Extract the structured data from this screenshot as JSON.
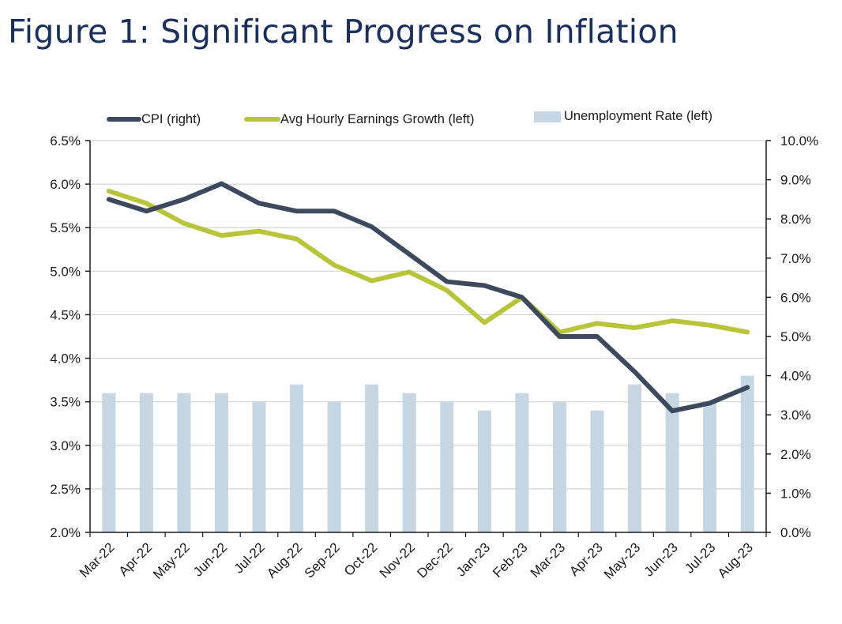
{
  "figure": {
    "title": "Figure 1: Significant Progress on Inflation"
  },
  "colors": {
    "cpi": "#3d4a5e",
    "earnings": "#b8c43a",
    "unemployment": "#c6d6e3",
    "axis": "#1a1a1a",
    "grid": "#d4d4d4",
    "title": "#1b2f5c"
  },
  "chart_data": {
    "type": "bar",
    "grid": true,
    "legend_position": "top",
    "categories": [
      "Mar-22",
      "Apr-22",
      "May-22",
      "Jun-22",
      "Jul-22",
      "Aug-22",
      "Sep-22",
      "Oct-22",
      "Nov-22",
      "Dec-22",
      "Jan-23",
      "Feb-23",
      "Mar-23",
      "Apr-23",
      "May-23",
      "Jun-23",
      "Jul-23",
      "Aug-23"
    ],
    "left_axis": {
      "ylim": [
        2.0,
        6.5
      ],
      "ticks": [
        "2.0%",
        "2.5%",
        "3.0%",
        "3.5%",
        "4.0%",
        "4.5%",
        "5.0%",
        "5.5%",
        "6.0%",
        "6.5%"
      ]
    },
    "right_axis": {
      "ylim": [
        0.0,
        10.0
      ],
      "ticks": [
        "0.0%",
        "1.0%",
        "2.0%",
        "3.0%",
        "4.0%",
        "5.0%",
        "6.0%",
        "7.0%",
        "8.0%",
        "9.0%",
        "10.0%"
      ]
    },
    "series": [
      {
        "name": "CPI (right)",
        "type": "line",
        "axis": "right",
        "values": [
          8.5,
          8.2,
          8.5,
          8.9,
          8.4,
          8.2,
          8.2,
          7.8,
          7.1,
          6.4,
          6.3,
          6.0,
          5.0,
          5.0,
          4.1,
          3.1,
          3.3,
          3.7
        ]
      },
      {
        "name": "Avg Hourly Earnings Growth (left)",
        "type": "line",
        "axis": "left",
        "values": [
          5.92,
          5.78,
          5.55,
          5.41,
          5.46,
          5.37,
          5.07,
          4.89,
          4.99,
          4.78,
          4.41,
          4.7,
          4.3,
          4.4,
          4.35,
          4.43,
          4.38,
          4.3
        ]
      },
      {
        "name": "Unemployment Rate (left)",
        "type": "bar",
        "axis": "left",
        "values": [
          3.6,
          3.6,
          3.6,
          3.6,
          3.5,
          3.7,
          3.5,
          3.7,
          3.6,
          3.5,
          3.4,
          3.6,
          3.5,
          3.4,
          3.7,
          3.6,
          3.5,
          3.8
        ]
      }
    ]
  }
}
